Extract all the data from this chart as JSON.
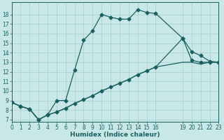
{
  "xlabel": "Humidex (Indice chaleur)",
  "bg_color": "#c8e8e8",
  "grid_color": "#a8cccc",
  "line_color": "#1a6060",
  "line1_x": [
    0,
    1,
    2,
    3,
    4,
    5,
    6,
    7,
    8,
    9,
    10,
    11,
    12,
    13,
    14,
    15,
    16,
    19,
    20,
    21,
    22,
    23
  ],
  "line1_y": [
    8.8,
    8.4,
    8.1,
    7.0,
    7.5,
    9.0,
    9.0,
    12.2,
    15.3,
    16.3,
    18.0,
    17.7,
    17.5,
    17.5,
    18.5,
    18.2,
    18.1,
    15.5,
    14.1,
    13.7,
    13.1,
    13.0
  ],
  "line2_x": [
    0,
    1,
    2,
    3,
    4,
    5,
    6,
    7,
    8,
    9,
    10,
    11,
    12,
    13,
    14,
    15,
    16,
    19,
    20,
    21,
    22,
    23
  ],
  "line2_y": [
    8.8,
    8.4,
    8.1,
    7.0,
    7.5,
    7.8,
    8.2,
    8.7,
    9.1,
    9.5,
    10.0,
    10.4,
    10.8,
    11.2,
    11.7,
    12.1,
    12.5,
    15.5,
    13.2,
    13.0,
    13.0,
    13.0
  ],
  "line3_x": [
    0,
    1,
    2,
    3,
    4,
    5,
    6,
    7,
    8,
    9,
    10,
    11,
    12,
    13,
    14,
    15,
    16,
    19,
    20,
    21,
    22,
    23
  ],
  "line3_y": [
    8.8,
    8.4,
    8.1,
    7.0,
    7.5,
    7.8,
    8.2,
    8.7,
    9.1,
    9.5,
    10.0,
    10.4,
    10.8,
    11.2,
    11.7,
    12.1,
    12.5,
    13.0,
    13.0,
    12.8,
    13.0,
    13.0
  ],
  "xlim": [
    0,
    23
  ],
  "ylim": [
    6.8,
    19.3
  ],
  "xticks": [
    0,
    1,
    2,
    3,
    4,
    5,
    6,
    7,
    8,
    9,
    10,
    11,
    12,
    13,
    14,
    15,
    16,
    19,
    20,
    21,
    22,
    23
  ],
  "xtick_labels": [
    "0",
    "1",
    "2",
    "3",
    "4",
    "5",
    "6",
    "7",
    "8",
    "9",
    "10",
    "11",
    "12",
    "13",
    "14",
    "15",
    "16",
    "19",
    "20",
    "21",
    "22",
    "23"
  ],
  "yticks": [
    7,
    8,
    9,
    10,
    11,
    12,
    13,
    14,
    15,
    16,
    17,
    18
  ],
  "tick_fontsize": 5.5,
  "axis_fontsize": 6.5,
  "markersize": 2.5,
  "linewidth": 0.9
}
